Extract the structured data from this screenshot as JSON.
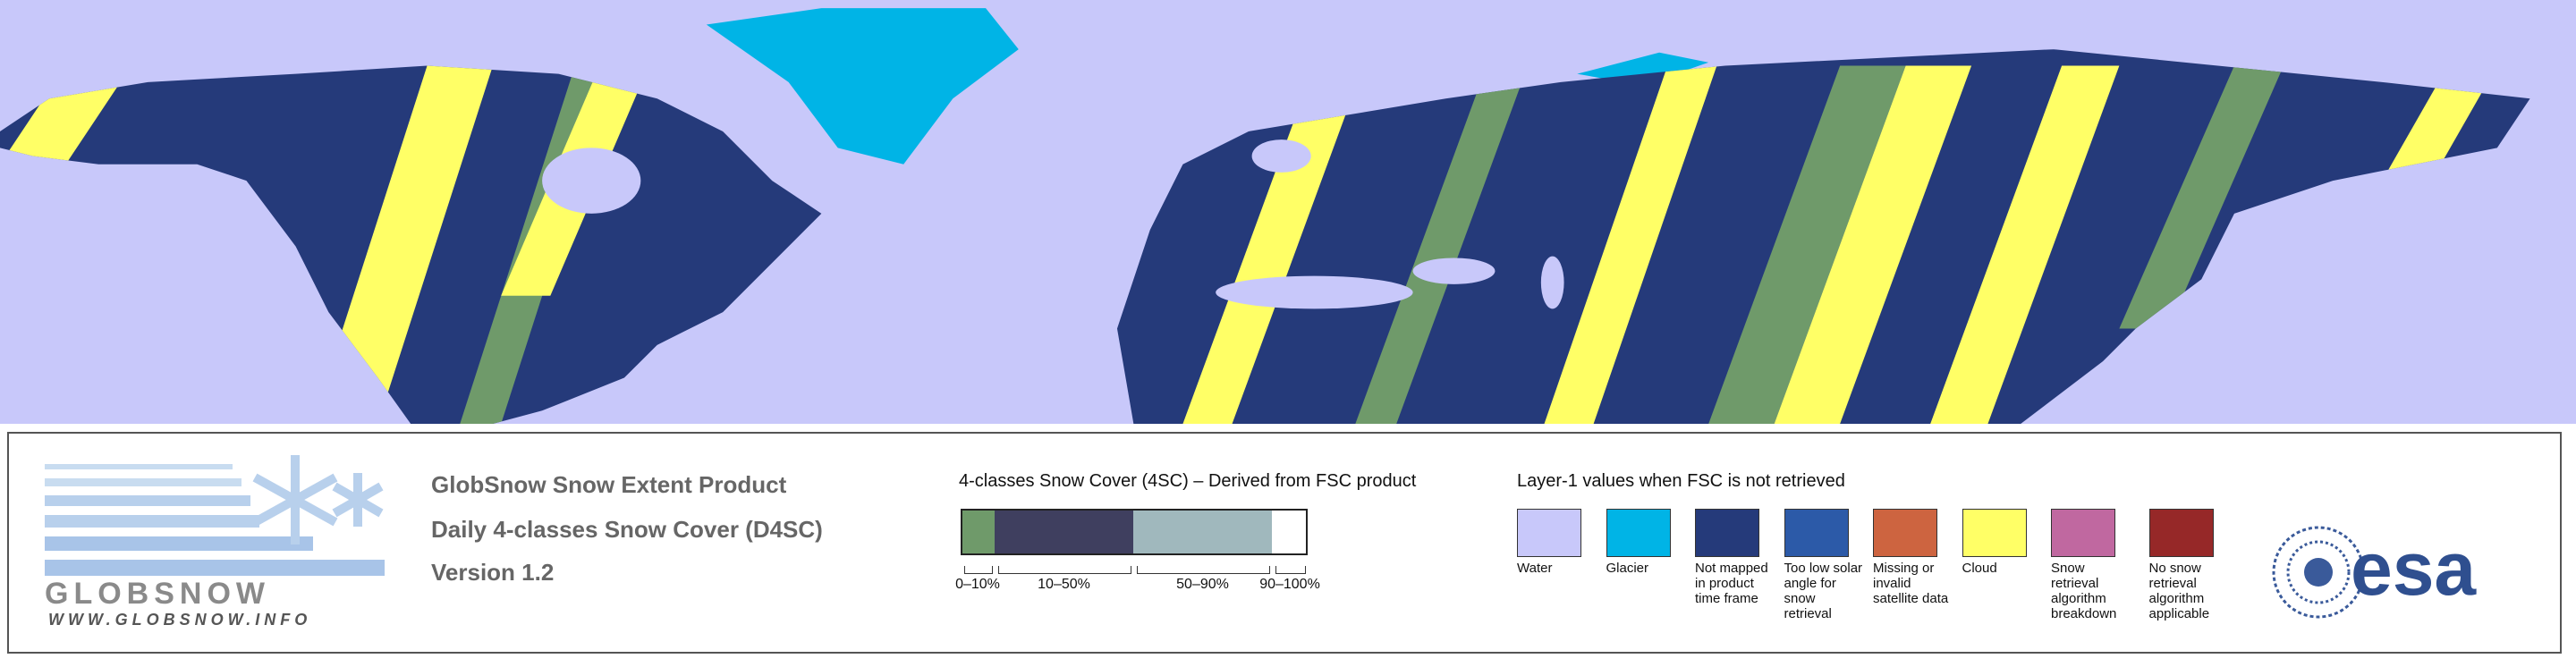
{
  "logo": {
    "name": "GLOBSNOW",
    "url": "WWW.GLOBSNOW.INFO"
  },
  "product": {
    "lines": [
      "GlobSnow Snow Extent Product",
      "Daily 4-classes Snow Cover (D4SC)",
      "Version 1.2"
    ]
  },
  "fsc_legend": {
    "title": "4-classes Snow Cover (4SC) – Derived from FSC product",
    "classes": [
      {
        "label": "0–10%",
        "color": "#6f9a6a"
      },
      {
        "label": "10–50%",
        "color": "#3f3f5f"
      },
      {
        "label": "50–90%",
        "color": "#a0b8bd"
      },
      {
        "label": "90–100%",
        "color": "#ffffff"
      }
    ]
  },
  "layer1_legend": {
    "title": "Layer-1 values when FSC is not retrieved",
    "classes": [
      {
        "label": "Water",
        "color": "#c8c8fa"
      },
      {
        "label": "Glacier",
        "color": "#00b4e6"
      },
      {
        "label": "Not mapped in product time frame",
        "color": "#253a7a"
      },
      {
        "label": "Too low solar angle for snow retrieval",
        "color": "#2c5aa8"
      },
      {
        "label": "Missing or invalid satellite data",
        "color": "#cd6440"
      },
      {
        "label": "Cloud",
        "color": "#ffff66"
      },
      {
        "label": "Snow retrieval algorithm breakdown",
        "color": "#c068a0"
      },
      {
        "label": "No snow retrieval algorithm applicable",
        "color": "#962828"
      }
    ]
  },
  "agency": "esa"
}
